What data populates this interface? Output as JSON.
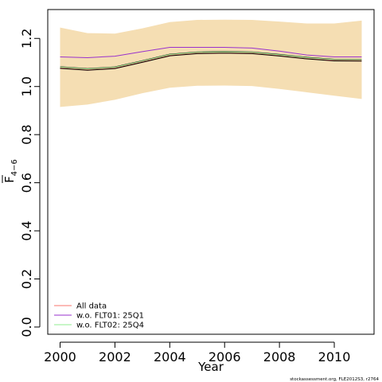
{
  "chart_data": {
    "type": "line",
    "xlabel": "Year",
    "ylabel": {
      "main": "F",
      "sub": "4−6"
    },
    "xlim": [
      1999.55,
      2011.45
    ],
    "ylim": [
      -0.03,
      1.32
    ],
    "x_ticks": [
      2000,
      2002,
      2004,
      2006,
      2008,
      2010
    ],
    "y_ticks": [
      0.0,
      0.2,
      0.4,
      0.6,
      0.8,
      1.0,
      1.2
    ],
    "y_tick_labels": [
      "0.0",
      "0.2",
      "0.4",
      "0.6",
      "0.8",
      "1.0",
      "1.2"
    ],
    "grid": false,
    "legend_position": "bottom-left",
    "x": [
      2000,
      2001,
      2002,
      2003,
      2004,
      2005,
      2006,
      2007,
      2008,
      2009,
      2010,
      2011
    ],
    "band": {
      "color": "#F5DEB3",
      "lower": [
        0.915,
        0.925,
        0.945,
        0.972,
        0.995,
        1.003,
        1.004,
        1.002,
        0.99,
        0.976,
        0.962,
        0.948
      ],
      "upper": [
        1.245,
        1.222,
        1.22,
        1.242,
        1.268,
        1.277,
        1.278,
        1.277,
        1.27,
        1.262,
        1.262,
        1.274
      ]
    },
    "estimate": {
      "values": [
        1.079,
        1.071,
        1.078,
        1.104,
        1.131,
        1.14,
        1.142,
        1.14,
        1.13,
        1.118,
        1.11,
        1.109
      ]
    },
    "series": [
      {
        "name": "All data",
        "color": "#F8766D",
        "values": [
          1.079,
          1.071,
          1.078,
          1.104,
          1.131,
          1.14,
          1.142,
          1.14,
          1.13,
          1.118,
          1.11,
          1.109
        ]
      },
      {
        "name": "w.o. FLT01: 25Q1",
        "color": "#9932CC",
        "values": [
          1.123,
          1.12,
          1.126,
          1.145,
          1.163,
          1.163,
          1.163,
          1.16,
          1.147,
          1.131,
          1.123,
          1.123
        ]
      },
      {
        "name": "w.o. FLT02: 25Q4",
        "color": "#90EE90",
        "values": [
          1.081,
          1.073,
          1.08,
          1.106,
          1.133,
          1.142,
          1.144,
          1.142,
          1.132,
          1.12,
          1.112,
          1.111
        ]
      }
    ],
    "credit": "stockassessment.org, FLE2012S3, r2764"
  }
}
